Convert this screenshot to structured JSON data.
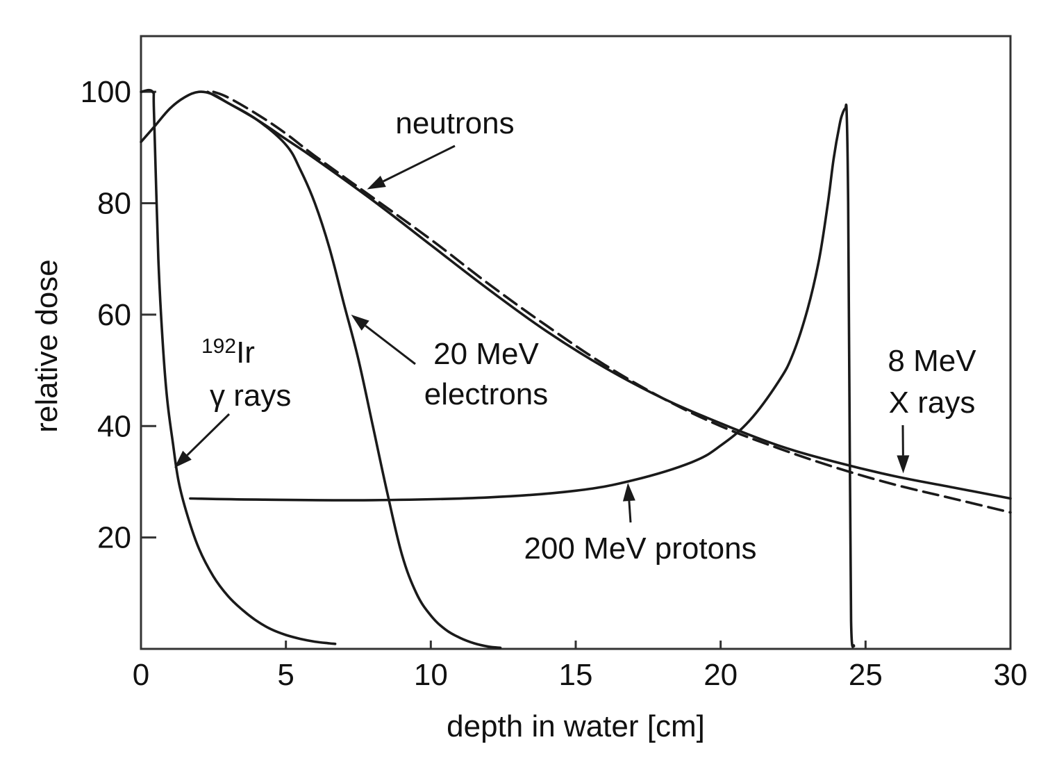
{
  "chart_data": {
    "type": "line",
    "xlabel": "depth in water [cm]",
    "ylabel": "relative dose",
    "xlim": [
      0,
      30
    ],
    "ylim": [
      0,
      110
    ],
    "xticks": [
      0,
      5,
      10,
      15,
      20,
      25,
      30
    ],
    "yticks": [
      20,
      40,
      60,
      80,
      100
    ],
    "grid": false,
    "series": [
      {
        "name": "192Ir γ rays",
        "style": "solid",
        "x": [
          0,
          0.4,
          0.45,
          0.6,
          0.75,
          0.9,
          1.1,
          1.3,
          1.6,
          2.0,
          2.5,
          3.0,
          3.5,
          4.0,
          4.5,
          5.0,
          5.5,
          6.0,
          6.5,
          6.7
        ],
        "y": [
          100,
          100,
          96,
          70,
          55,
          45,
          37,
          30,
          24,
          18,
          13,
          9.5,
          7,
          5,
          3.5,
          2.5,
          1.8,
          1.3,
          1.0,
          0.9
        ]
      },
      {
        "name": "20 MeV electrons",
        "style": "solid",
        "x": [
          0,
          0.5,
          1.0,
          1.5,
          2.0,
          2.5,
          3.0,
          4.0,
          5.0,
          5.5,
          6.0,
          6.5,
          7.0,
          7.5,
          8.0,
          8.5,
          9.0,
          9.5,
          10.0,
          10.5,
          11.0,
          11.5,
          12.0,
          12.4
        ],
        "y": [
          91,
          94,
          97,
          99,
          100,
          99.5,
          98,
          95,
          90.5,
          86,
          80,
          72,
          62,
          52,
          40,
          28,
          17,
          10,
          6,
          3.5,
          2,
          1,
          0.4,
          0.2
        ]
      },
      {
        "name": "neutrons",
        "style": "dashed",
        "x": [
          2.5,
          3.0,
          4.0,
          5.0,
          6.0,
          8.0,
          10.0,
          12.0,
          14.0,
          16.0,
          18.0,
          20.0,
          22.0,
          24.0,
          26.0,
          28.0,
          30.0
        ],
        "y": [
          100,
          99,
          96,
          92.5,
          88.5,
          81,
          73.5,
          65.5,
          58,
          51,
          45,
          40,
          36,
          32.5,
          29.5,
          27,
          24.5
        ]
      },
      {
        "name": "8 MeV X rays",
        "style": "solid",
        "x": [
          2.3,
          3.0,
          4.0,
          5.0,
          6.0,
          8.0,
          10.0,
          12.0,
          14.0,
          16.0,
          18.0,
          20.0,
          22.0,
          24.0,
          26.0,
          28.0,
          30.0
        ],
        "y": [
          100,
          98,
          95,
          91.5,
          88,
          80.5,
          72.5,
          64.5,
          57,
          50.5,
          45,
          40.5,
          36.5,
          33.5,
          31,
          29,
          27
        ]
      },
      {
        "name": "200 MeV protons",
        "style": "solid",
        "x": [
          1.7,
          4.0,
          8.0,
          12.0,
          15.0,
          17.0,
          19.0,
          20.0,
          21.0,
          22.0,
          22.5,
          23.0,
          23.4,
          23.7,
          23.9,
          24.1,
          24.2,
          24.3,
          24.35,
          24.4,
          24.45,
          24.5,
          24.6
        ],
        "y": [
          27,
          26.8,
          26.7,
          27.2,
          28.4,
          30.3,
          33.5,
          36.5,
          41,
          48,
          53,
          61,
          70,
          80,
          88,
          94,
          96,
          97,
          96,
          80,
          40,
          5,
          0.5
        ]
      }
    ],
    "annotations": [
      {
        "text": "neutrons",
        "target": "neutrons"
      },
      {
        "text_sup": "192",
        "text": "Ir",
        "line2": "γ rays",
        "target": "192Ir γ rays"
      },
      {
        "text": "20 MeV",
        "line2": "electrons",
        "target": "20 MeV electrons"
      },
      {
        "text": "8 MeV",
        "line2": "X rays",
        "target": "8 MeV X rays"
      },
      {
        "text": "200 MeV protons",
        "target": "200 MeV protons"
      }
    ]
  }
}
